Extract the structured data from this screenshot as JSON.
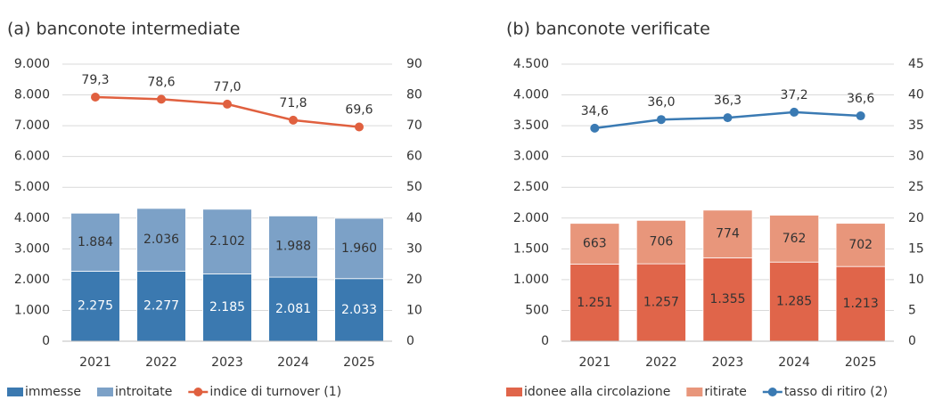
{
  "chart_data": [
    {
      "type": "bar",
      "title": "(a) banconote intermediate",
      "categories": [
        "2021",
        "2022",
        "2023",
        "2024",
        "2025"
      ],
      "series": [
        {
          "name": "immesse",
          "color": "#3b79b0",
          "values": [
            2275,
            2277,
            2185,
            2081,
            2033
          ],
          "value_labels": [
            "2.275",
            "2.277",
            "2.185",
            "2.081",
            "2.033"
          ]
        },
        {
          "name": "introitate",
          "color": "#7ca1c7",
          "values": [
            1884,
            2036,
            2102,
            1988,
            1960
          ],
          "value_labels": [
            "1.884",
            "2.036",
            "2.102",
            "1.988",
            "1.960"
          ]
        },
        {
          "name": "indice di turnover (1)",
          "color": "#e0603f",
          "axis": "y2",
          "values": [
            79.3,
            78.6,
            77.0,
            71.8,
            69.6
          ],
          "value_labels": [
            "79,3",
            "78,6",
            "77,0",
            "71,8",
            "69,6"
          ]
        }
      ],
      "ylim": [
        0,
        9000
      ],
      "yticks": [
        0,
        {
          "value": 1000,
          "label": "1.000"
        },
        {
          "value": 2000,
          "label": "2.000"
        },
        {
          "value": 3000,
          "label": "3.000"
        },
        {
          "value": 4000,
          "label": "4.000"
        },
        {
          "value": 5000,
          "label": "5.000"
        },
        {
          "value": 6000,
          "label": "6.000"
        },
        {
          "value": 7000,
          "label": "7.000"
        },
        {
          "value": 8000,
          "label": "8.000"
        },
        {
          "value": 9000,
          "label": "9.000"
        }
      ],
      "y2lim": [
        0,
        90
      ],
      "y2ticks": [
        0,
        10,
        20,
        30,
        40,
        50,
        60,
        70,
        80,
        90
      ],
      "grid": true,
      "legend": "bottom"
    },
    {
      "type": "bar",
      "title": "(b) banconote verificate",
      "categories": [
        "2021",
        "2022",
        "2023",
        "2024",
        "2025"
      ],
      "series": [
        {
          "name": "idonee alla circolazione",
          "color": "#e0654a",
          "values": [
            1251,
            1257,
            1355,
            1285,
            1213
          ],
          "value_labels": [
            "1.251",
            "1.257",
            "1.355",
            "1.285",
            "1.213"
          ]
        },
        {
          "name": "ritirate",
          "color": "#e8967b",
          "values": [
            663,
            706,
            774,
            762,
            702
          ]
        },
        {
          "name": "tasso di ritiro (2)",
          "color": "#3a7ab3",
          "axis": "y2",
          "values": [
            34.6,
            36.0,
            36.3,
            37.2,
            36.6
          ],
          "value_labels": [
            "34,6",
            "36,0",
            "36,3",
            "37,2",
            "36,6"
          ]
        }
      ],
      "ylim": [
        0,
        4500
      ],
      "yticks": [
        0,
        500,
        {
          "value": 1000,
          "label": "1.000"
        },
        {
          "value": 1500,
          "label": "1.500"
        },
        {
          "value": 2000,
          "label": "2.000"
        },
        {
          "value": 2500,
          "label": "2.500"
        },
        {
          "value": 3000,
          "label": "3.000"
        },
        {
          "value": 3500,
          "label": "3.500"
        },
        {
          "value": 4000,
          "label": "4.000"
        },
        {
          "value": 4500,
          "label": "4.500"
        }
      ],
      "y2lim": [
        0,
        45
      ],
      "y2ticks": [
        0,
        5,
        10,
        15,
        20,
        25,
        30,
        35,
        40,
        45
      ],
      "grid": true,
      "legend": "bottom"
    }
  ]
}
